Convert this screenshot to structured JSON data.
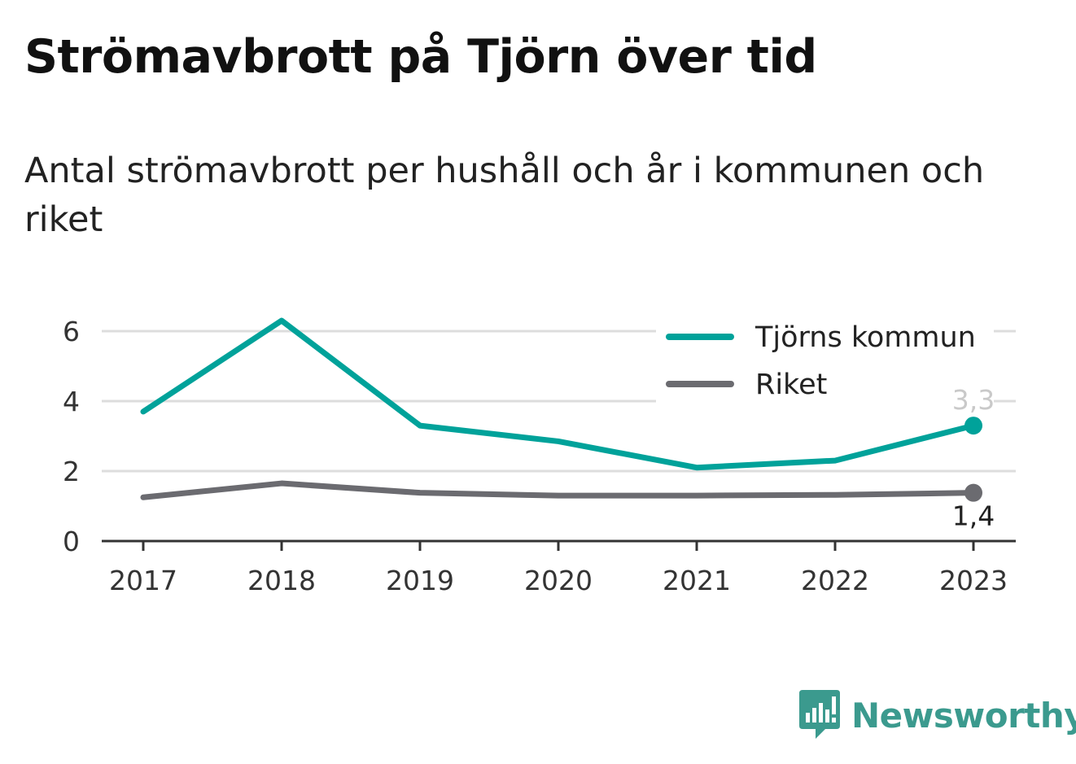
{
  "title": "Strömavbrott på Tjörn över tid",
  "subtitle": "Antal strömavbrott per hushåll och år i kommunen och riket",
  "brand": {
    "name": "Newsworthy",
    "icon": "newsworthy-logo-icon"
  },
  "colors": {
    "tjorn": "#00a29a",
    "riket": "#6b6b70",
    "grid": "#dddddd",
    "axis": "#333333"
  },
  "chart_data": {
    "type": "line",
    "x": [
      "2017",
      "2018",
      "2019",
      "2020",
      "2021",
      "2022",
      "2023"
    ],
    "ylim": [
      0,
      6.5
    ],
    "yticks": [
      "0",
      "2",
      "4",
      "6"
    ],
    "grid": true,
    "legend_position": "top-right",
    "series": [
      {
        "name": "Tjörns kommun",
        "values": [
          3.7,
          6.3,
          3.3,
          2.85,
          2.1,
          2.3,
          3.3
        ],
        "end_label": "3,3"
      },
      {
        "name": "Riket",
        "values": [
          1.25,
          1.65,
          1.38,
          1.3,
          1.3,
          1.32,
          1.38
        ],
        "end_label": "1,4"
      }
    ]
  }
}
